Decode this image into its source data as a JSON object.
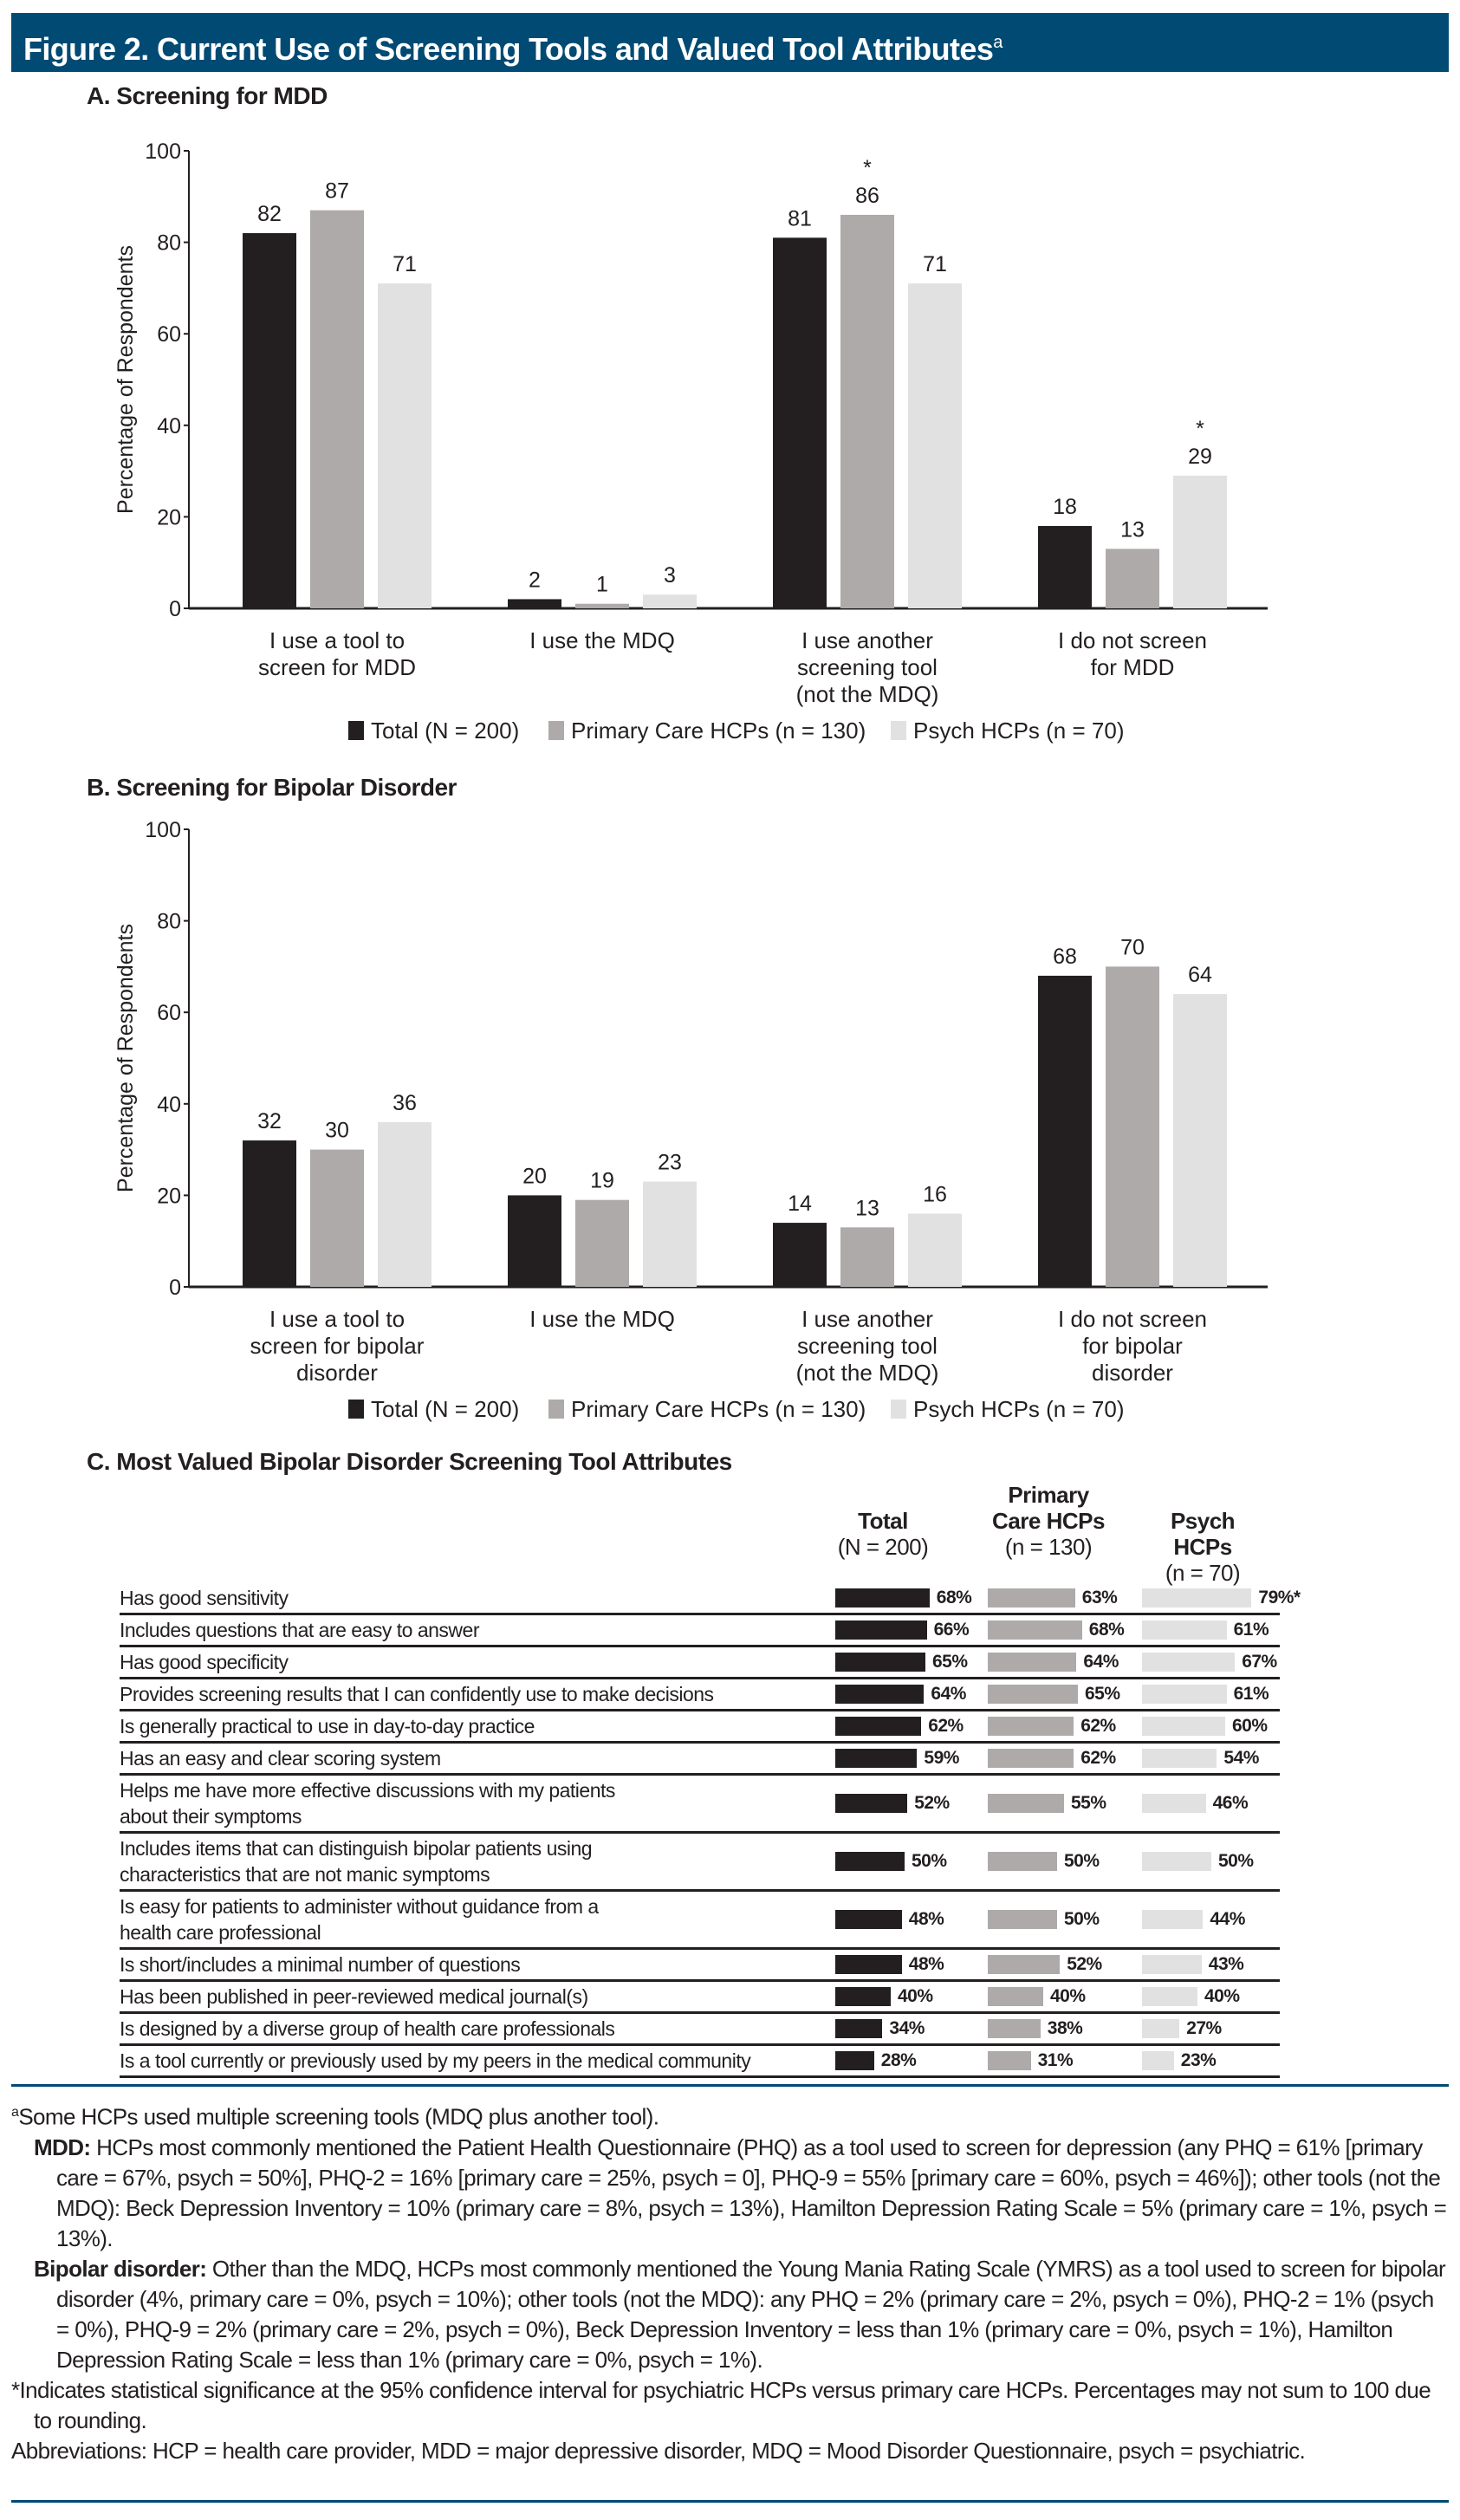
{
  "header": {
    "title": "Figure 2. Current Use of Screening Tools and Valued Tool Attributes",
    "title_sup": "a"
  },
  "colors": {
    "header_bg": "#004a73",
    "total": "#231f20",
    "primary": "#aeaaa9",
    "psych": "#e1e1e1"
  },
  "chart_data": [
    {
      "type": "bar",
      "title": "A. Screening for MDD",
      "ylabel": "Percentage of Respondents",
      "xlabel": "",
      "ylim": [
        0,
        100
      ],
      "yticks": [
        "0",
        "20",
        "40",
        "60",
        "80",
        "100"
      ],
      "categories": [
        [
          "I use a tool to",
          "screen for MDD"
        ],
        [
          "I use the MDQ"
        ],
        [
          "I use another",
          "screening tool",
          "(not the MDQ)"
        ],
        [
          "I do not screen",
          "for MDD"
        ]
      ],
      "series": [
        {
          "name": "Total (N = 200)",
          "values": [
            82,
            2,
            81,
            18
          ],
          "flags": [
            "",
            "",
            "",
            ""
          ]
        },
        {
          "name": "Primary Care HCPs (n = 130)",
          "values": [
            87,
            1,
            86,
            13
          ],
          "flags": [
            "",
            "",
            "*",
            ""
          ]
        },
        {
          "name": "Psych HCPs (n = 70)",
          "values": [
            71,
            3,
            71,
            29
          ],
          "flags": [
            "",
            "",
            "",
            "*"
          ]
        }
      ],
      "legend_position": "bottom"
    },
    {
      "type": "bar",
      "title": "B. Screening for Bipolar Disorder",
      "ylabel": "Percentage of Respondents",
      "xlabel": "",
      "ylim": [
        0,
        100
      ],
      "yticks": [
        "0",
        "20",
        "40",
        "60",
        "80",
        "100"
      ],
      "categories": [
        [
          "I use a tool to",
          "screen for bipolar",
          "disorder"
        ],
        [
          "I use the MDQ"
        ],
        [
          "I use another",
          "screening tool",
          "(not the MDQ)"
        ],
        [
          "I do not screen",
          "for bipolar",
          "disorder"
        ]
      ],
      "series": [
        {
          "name": "Total (N = 200)",
          "values": [
            32,
            20,
            14,
            68
          ],
          "flags": [
            "",
            "",
            "",
            ""
          ]
        },
        {
          "name": "Primary Care HCPs (n = 130)",
          "values": [
            30,
            19,
            13,
            70
          ],
          "flags": [
            "",
            "",
            "",
            ""
          ]
        },
        {
          "name": "Psych HCPs (n = 70)",
          "values": [
            36,
            23,
            16,
            64
          ],
          "flags": [
            "",
            "",
            "",
            ""
          ]
        }
      ],
      "legend_position": "bottom"
    },
    {
      "type": "table",
      "title": "C. Most Valued Bipolar Disorder Screening Tool Attributes",
      "columns": [
        {
          "name": "Total",
          "n": "(N = 200)"
        },
        {
          "name": "Primary Care HCPs",
          "name_lines": [
            "Primary",
            "Care HCPs"
          ],
          "n": "(n = 130)"
        },
        {
          "name": "Psych HCPs",
          "n": "(n = 70)"
        }
      ],
      "rows": [
        {
          "label": "Has good sensitivity",
          "values": [
            68,
            63,
            79
          ],
          "labels": [
            "68%",
            "63%",
            "79%*"
          ]
        },
        {
          "label": "Includes questions that are easy to answer",
          "values": [
            66,
            68,
            61
          ],
          "labels": [
            "66%",
            "68%",
            "61%"
          ]
        },
        {
          "label": "Has good specificity",
          "values": [
            65,
            64,
            67
          ],
          "labels": [
            "65%",
            "64%",
            "67%"
          ]
        },
        {
          "label": "Provides screening results that I can confidently use to make decisions",
          "values": [
            64,
            65,
            61
          ],
          "labels": [
            "64%",
            "65%",
            "61%"
          ]
        },
        {
          "label": "Is generally practical to use in day-to-day practice",
          "values": [
            62,
            62,
            60
          ],
          "labels": [
            "62%",
            "62%",
            "60%"
          ]
        },
        {
          "label": "Has an easy and clear scoring system",
          "values": [
            59,
            62,
            54
          ],
          "labels": [
            "59%",
            "62%",
            "54%"
          ]
        },
        {
          "label": "Helps me have more effective discussions with my patients about their symptoms",
          "values": [
            52,
            55,
            46
          ],
          "labels": [
            "52%",
            "55%",
            "46%"
          ]
        },
        {
          "label": "Includes items that can distinguish bipolar patients using characteristics that are not manic symptoms",
          "values": [
            50,
            50,
            50
          ],
          "labels": [
            "50%",
            "50%",
            "50%"
          ]
        },
        {
          "label": "Is easy for patients to administer without guidance from a health care professional",
          "values": [
            48,
            50,
            44
          ],
          "labels": [
            "48%",
            "50%",
            "44%"
          ]
        },
        {
          "label": "Is short/includes a minimal number of questions",
          "values": [
            48,
            52,
            43
          ],
          "labels": [
            "48%",
            "52%",
            "43%"
          ]
        },
        {
          "label": "Has been published in peer-reviewed medical journal(s)",
          "values": [
            40,
            40,
            40
          ],
          "labels": [
            "40%",
            "40%",
            "40%"
          ]
        },
        {
          "label": "Is designed by a diverse group of health care professionals",
          "values": [
            34,
            38,
            27
          ],
          "labels": [
            "34%",
            "38%",
            "27%"
          ]
        },
        {
          "label": "Is a tool currently or previously used by my peers in the medical community",
          "values": [
            28,
            31,
            23
          ],
          "labels": [
            "28%",
            "31%",
            "23%"
          ]
        }
      ]
    }
  ],
  "footnotes": {
    "a_mark": "a",
    "a_text": "Some HCPs used multiple screening tools (MDQ plus another tool).",
    "mdd_label": "MDD:",
    "mdd_text": " HCPs most commonly mentioned the Patient Health Questionnaire (PHQ) as a tool used to screen for depression (any PHQ = 61% [primary care = 67%, psych = 50%], PHQ-2 = 16% [primary care = 25%, psych = 0], PHQ-9 = 55% [primary care = 60%, psych = 46%]); other tools (not the MDQ): Beck Depression Inventory = 10% (primary care = 8%, psych = 13%), Hamilton Depression Rating Scale = 5% (primary care = 1%, psych = 13%).",
    "bipolar_label": "Bipolar disorder:",
    "bipolar_text": " Other than the MDQ, HCPs most commonly mentioned the Young Mania Rating Scale (YMRS) as a tool used to screen for bipolar disorder (4%, primary care = 0%, psych = 10%); other tools (not the MDQ): any PHQ = 2% (primary care = 2%, psych = 0%), PHQ-2 = 1% (psych = 0%), PHQ-9 = 2% (primary care = 2%, psych = 0%), Beck Depression Inventory = less than 1% (primary care = 0%, psych = 1%), Hamilton Depression Rating Scale = less than 1% (primary care = 0%, psych = 1%).",
    "significance": "*Indicates statistical significance at the 95% confidence interval for psychiatric HCPs versus primary care HCPs. Percentages may not sum to 100 due to rounding.",
    "abbreviations": "Abbreviations: HCP = health care provider, MDD = major depressive disorder, MDQ = Mood Disorder Questionnaire, psych = psychiatric."
  }
}
